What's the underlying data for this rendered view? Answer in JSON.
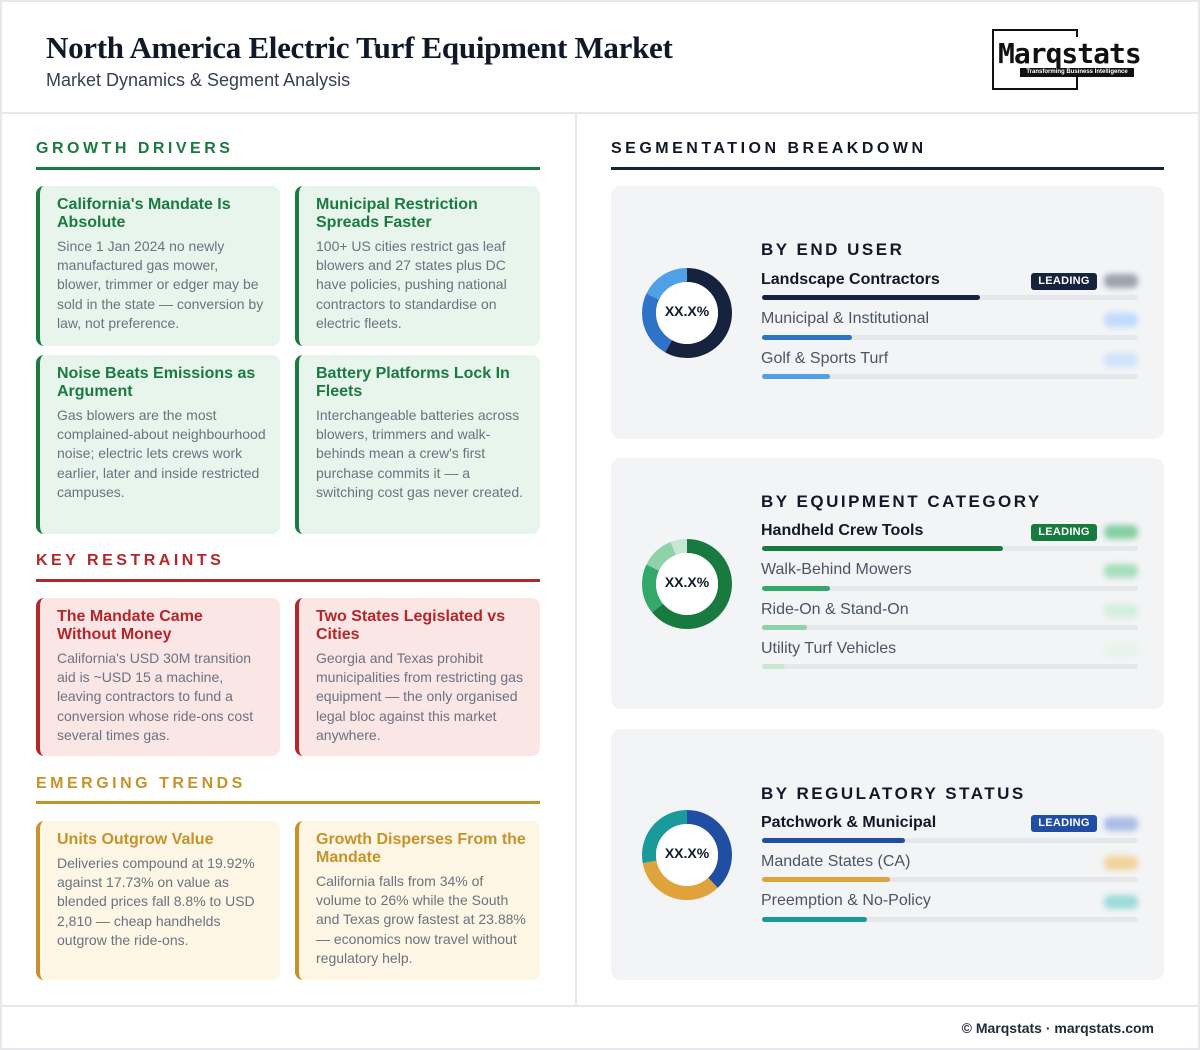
{
  "header": {
    "title": "North America Electric Turf Equipment Market",
    "subtitle": "Market Dynamics & Segment Analysis",
    "logo_word": "Marqstats",
    "logo_tagline": "Transforming Business Intelligence"
  },
  "growth_drivers": {
    "heading": "GROWTH DRIVERS",
    "color": "#1a7a40",
    "cards": [
      {
        "title": "California's Mandate Is Absolute",
        "body": "Since 1 Jan 2024 no newly manufactured gas mower, blower, trimmer or edger may be sold in the state — conversion by law, not preference."
      },
      {
        "title": "Municipal Restriction Spreads Faster",
        "body": "100+ US cities restrict gas leaf blowers and 27 states plus DC have policies, pushing national contractors to standardise on electric fleets."
      },
      {
        "title": "Noise Beats Emissions as Argument",
        "body": "Gas blowers are the most complained-about neighbourhood noise; electric lets crews work earlier, later and inside restricted campuses."
      },
      {
        "title": "Battery Platforms Lock In Fleets",
        "body": "Interchangeable batteries across blowers, trimmers and walk-behinds mean a crew's first purchase commits it — a switching cost gas never created."
      }
    ]
  },
  "key_restraints": {
    "heading": "KEY RESTRAINTS",
    "color": "#b3262a",
    "cards": [
      {
        "title": "The Mandate Came Without Money",
        "body": "California's USD 30M transition aid is ~USD 15 a machine, leaving contractors to fund a conversion whose ride-ons cost several times gas."
      },
      {
        "title": "Two States Legislated vs Cities",
        "body": "Georgia and Texas prohibit municipalities from restricting gas equipment — the only organised legal bloc against this market anywhere."
      }
    ]
  },
  "emerging_trends": {
    "heading": "EMERGING TRENDS",
    "color": "#c6922a",
    "cards": [
      {
        "title": "Units Outgrow Value",
        "body": "Deliveries compound at 19.92% against 17.73% on value as blended prices fall 8.8% to USD 2,810 — cheap handhelds outgrow the ride-ons."
      },
      {
        "title": "Growth Disperses From the Mandate",
        "body": "California falls from 34% of volume to 26% while the South and Texas grow fastest at 23.88% — economics now travel without regulatory help."
      }
    ]
  },
  "segmentation": {
    "heading": "SEGMENTATION BREAKDOWN",
    "leading_badge": "LEADING",
    "panels": [
      {
        "title": "BY END USER",
        "donut_label": "XX.X%",
        "rows": [
          {
            "label": "Landscape Contractors",
            "share": 0.58,
            "color": "#16233f"
          },
          {
            "label": "Municipal & Institutional",
            "share": 0.24,
            "color": "#2f73c9"
          },
          {
            "label": "Golf & Sports Turf",
            "share": 0.18,
            "color": "#4fa0e6"
          }
        ]
      },
      {
        "title": "BY EQUIPMENT CATEGORY",
        "donut_label": "XX.X%",
        "rows": [
          {
            "label": "Handheld Crew Tools",
            "share": 0.64,
            "color": "#177a3e"
          },
          {
            "label": "Walk-Behind Mowers",
            "share": 0.18,
            "color": "#34a868"
          },
          {
            "label": "Ride-On & Stand-On",
            "share": 0.12,
            "color": "#8fd1a8"
          },
          {
            "label": "Utility Turf Vehicles",
            "share": 0.06,
            "color": "#c6e8d2"
          }
        ]
      },
      {
        "title": "BY REGULATORY STATUS",
        "donut_label": "XX.X%",
        "rows": [
          {
            "label": "Patchwork & Municipal",
            "share": 0.38,
            "color": "#1f4ea3"
          },
          {
            "label": "Mandate States (CA)",
            "share": 0.34,
            "color": "#e0a23a"
          },
          {
            "label": "Preemption & No-Policy",
            "share": 0.28,
            "color": "#1a9a9a"
          }
        ]
      }
    ]
  },
  "footer": "© Marqstats · marqstats.com"
}
